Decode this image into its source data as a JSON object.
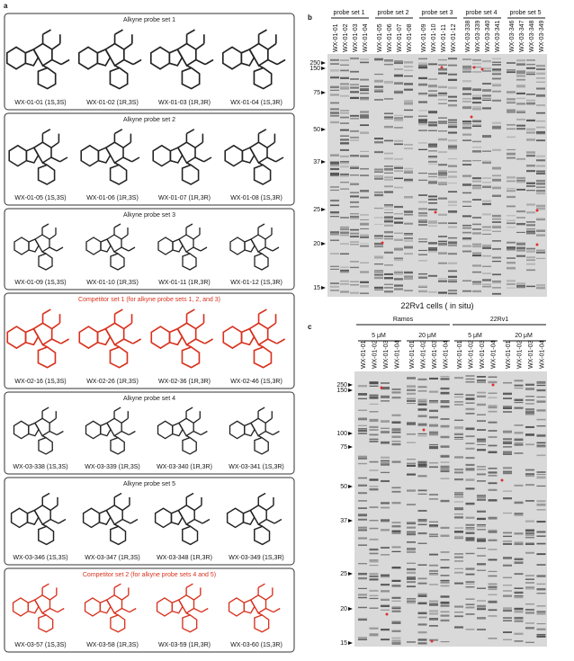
{
  "panel_a": {
    "label": "a",
    "sets": [
      {
        "title": "Alkyne probe set 1",
        "color": "#222",
        "compounds": [
          "WX-01-01 (1S,3S)",
          "WX-01-02 (1R,3S)",
          "WX-01-03 (1R,3R)",
          "WX-01-04 (1S,3R)"
        ]
      },
      {
        "title": "Alkyne probe set 2",
        "color": "#222",
        "compounds": [
          "WX-01-05 (1S,3S)",
          "WX-01-06 (1R,3S)",
          "WX-01-07 (1R,3R)",
          "WX-01-08 (1S,3R)"
        ]
      },
      {
        "title": "Alkyne probe set 3",
        "color": "#222",
        "compounds": [
          "WX-01-09 (1S,3S)",
          "WX-01-10 (1R,3S)",
          "WX-01-11 (1R,3R)",
          "WX-01-12 (1S,3R)"
        ]
      },
      {
        "title": "Competitor set 1 (for alkyne probe sets 1, 2, and 3)",
        "color": "#d8321e",
        "compounds": [
          "WX-02-16 (1S,3S)",
          "WX-02-26 (1R,3S)",
          "WX-02-36 (1R,3R)",
          "WX-02-46 (1S,3R)"
        ]
      },
      {
        "title": "Alkyne probe set 4",
        "color": "#222",
        "compounds": [
          "WX-03-338 (1S,3S)",
          "WX-03-339 (1R,3S)",
          "WX-03-340 (1R,3R)",
          "WX-03-341 (1S,3R)"
        ]
      },
      {
        "title": "Alkyne probe set 5",
        "color": "#222",
        "compounds": [
          "WX-03-346 (1S,3S)",
          "WX-03-347 (1R,3S)",
          "WX-03-348 (1R,3R)",
          "WX-03-349 (1S,3R)"
        ]
      },
      {
        "title": "Competitor set 2 (for alkyne probe sets 4 and 5)",
        "color": "#d8321e",
        "compounds": [
          "WX-03-57 (1S,3S)",
          "WX-03-58 (1R,3S)",
          "WX-03-59 (1R,3R)",
          "WX-03-60 (1S,3R)"
        ]
      }
    ]
  },
  "panel_b": {
    "label": "b",
    "groups": [
      {
        "name": "probe set 1",
        "lanes": [
          "WX-01-01",
          "WX-01-02",
          "WX-01-03",
          "WX-01-04"
        ]
      },
      {
        "name": "probe set 2",
        "lanes": [
          "WX-01-05",
          "WX-01-06",
          "WX-01-07",
          "WX-01-08"
        ]
      },
      {
        "name": "probe set 3",
        "lanes": [
          "WX-01-09",
          "WX-01-10",
          "WX-01-11",
          "WX-01-12"
        ]
      },
      {
        "name": "probe set 4",
        "lanes": [
          "WX-03-338",
          "WX-03-339",
          "WX-03-340",
          "WX-03-341"
        ]
      },
      {
        "name": "probe set 5",
        "lanes": [
          "WX-03-346",
          "WX-03-347",
          "WX-03-348",
          "WX-03-349"
        ]
      }
    ],
    "markers": [
      "250",
      "150",
      "75",
      "50",
      "37",
      "25",
      "20",
      "15"
    ],
    "caption": "22Rv1 cells ( in situ)"
  },
  "panel_c": {
    "label": "c",
    "cell_lines": [
      "Ramos",
      "22Rv1"
    ],
    "concentrations": [
      "5 μM",
      "20 μM"
    ],
    "lanes": [
      "WX-01-01",
      "WX-01-02",
      "WX-01-03",
      "WX-01-04"
    ],
    "markers": [
      "250",
      "150",
      "100",
      "75",
      "50",
      "37",
      "25",
      "20",
      "15"
    ]
  }
}
